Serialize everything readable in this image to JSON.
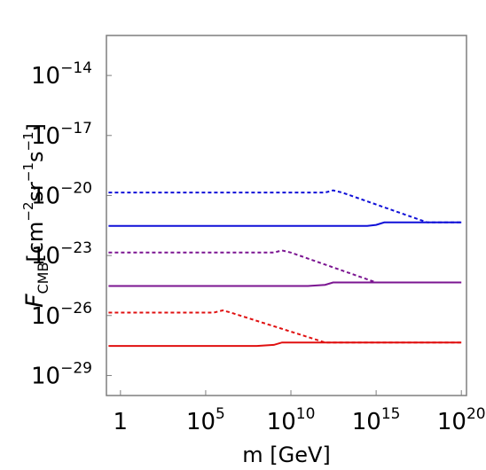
{
  "chart_data": {
    "type": "line",
    "title": "",
    "xlabel": "m [GeV]",
    "ylabel": {
      "symbol": "F",
      "subscript": "CMB",
      "units_open": "[cm",
      "exp_cm": "−2",
      "sr": "sr",
      "exp_sr": "−1",
      "s": "s",
      "exp_s": "−1",
      "units_close": "]"
    },
    "x_scale": "log",
    "y_scale": "log",
    "xlim": [
      0.15,
      2e+20
    ],
    "ylim": [
      1e-30,
      1e-12
    ],
    "x_ticks": [
      {
        "value": 1,
        "base": "1",
        "exp": ""
      },
      {
        "value": 100000.0,
        "base": "10",
        "exp": "5"
      },
      {
        "value": 10000000000.0,
        "base": "10",
        "exp": "10"
      },
      {
        "value": 1000000000000000.0,
        "base": "10",
        "exp": "15"
      },
      {
        "value": 1e+20,
        "base": "10",
        "exp": "20"
      }
    ],
    "y_ticks": [
      {
        "value": 1e-14,
        "base": "10",
        "exp": "−14"
      },
      {
        "value": 1e-17,
        "base": "10",
        "exp": "−17"
      },
      {
        "value": 1e-20,
        "base": "10",
        "exp": "−20"
      },
      {
        "value": 1e-23,
        "base": "10",
        "exp": "−23"
      },
      {
        "value": 1e-26,
        "base": "10",
        "exp": "−26"
      },
      {
        "value": 1e-29,
        "base": "10",
        "exp": "−29"
      }
    ],
    "grid": false,
    "legend": "none",
    "series": [
      {
        "color": "#1010d8",
        "dash": true,
        "x": [
          0.2,
          1000000000000.0,
          3000000000000.0,
          10000000000000.0,
          1e+18,
          1e+20
        ],
        "y": [
          1.4e-20,
          1.4e-20,
          1.8e-20,
          1.4e-20,
          4.5e-22,
          4.5e-22
        ]
      },
      {
        "color": "#1010d8",
        "dash": false,
        "x": [
          0.2,
          300000000000000.0,
          1000000000000000.0,
          3000000000000000.0,
          1e+20
        ],
        "y": [
          3e-22,
          3e-22,
          3.4e-22,
          4.5e-22,
          4.5e-22
        ]
      },
      {
        "color": "#7b1591",
        "dash": true,
        "x": [
          0.2,
          1000000000.0,
          3000000000.0,
          10000000000.0,
          1000000000000000.0,
          1e+20
        ],
        "y": [
          1.4e-23,
          1.4e-23,
          1.8e-23,
          1.4e-23,
          4.5e-25,
          4.5e-25
        ]
      },
      {
        "color": "#7b1591",
        "dash": false,
        "x": [
          0.2,
          100000000000.0,
          1000000000000.0,
          3000000000000.0,
          1e+20
        ],
        "y": [
          3e-25,
          3e-25,
          3.4e-25,
          4.5e-25,
          4.5e-25
        ]
      },
      {
        "color": "#e01010",
        "dash": true,
        "x": [
          0.2,
          300000.0,
          1000000.0,
          3000000.0,
          1000000000000.0,
          1e+20
        ],
        "y": [
          1.4e-26,
          1.4e-26,
          1.8e-26,
          1.4e-26,
          4.5e-28,
          4.5e-28
        ]
      },
      {
        "color": "#e01010",
        "dash": false,
        "x": [
          0.2,
          100000000.0,
          1000000000.0,
          3000000000.0,
          1e+20
        ],
        "y": [
          3e-28,
          3e-28,
          3.4e-28,
          4.5e-28,
          4.5e-28
        ]
      }
    ]
  }
}
